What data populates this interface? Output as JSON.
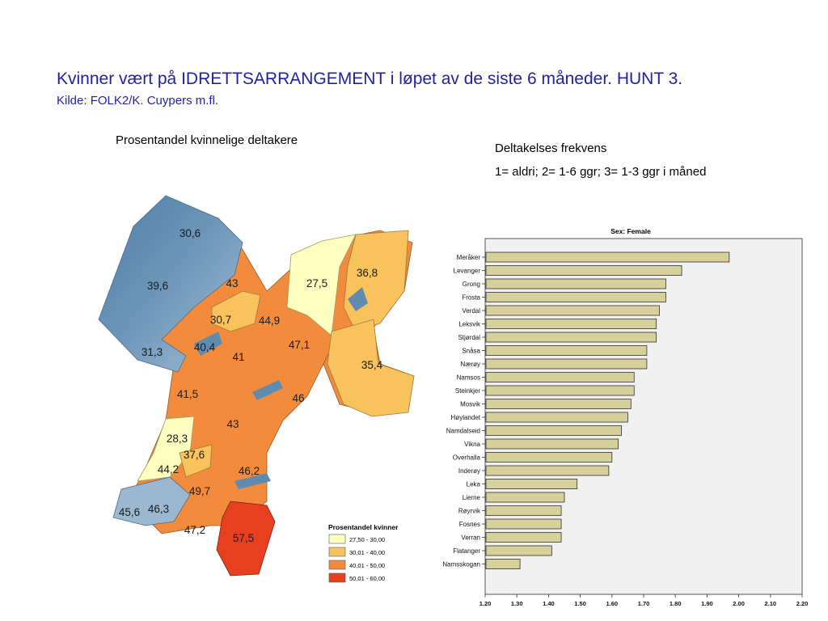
{
  "header": {
    "title": "Kvinner vært på IDRETTSARRANGEMENT i løpet av de siste 6 måneder. HUNT 3.",
    "source": "Kilde: FOLK2/K. Cuypers m.fl."
  },
  "map": {
    "heading": "Prosentandel kvinnelige deltakere",
    "region_values": [
      {
        "label": "30,6",
        "value": 30.6
      },
      {
        "label": "39,6",
        "value": 39.6
      },
      {
        "label": "43",
        "value": 43.0
      },
      {
        "label": "27,5",
        "value": 27.5
      },
      {
        "label": "36,8",
        "value": 36.8
      },
      {
        "label": "30,7",
        "value": 30.7
      },
      {
        "label": "44,9",
        "value": 44.9
      },
      {
        "label": "31,3",
        "value": 31.3
      },
      {
        "label": "40,4",
        "value": 40.4
      },
      {
        "label": "41",
        "value": 41.0
      },
      {
        "label": "47,1",
        "value": 47.1
      },
      {
        "label": "35,4",
        "value": 35.4
      },
      {
        "label": "41,5",
        "value": 41.5
      },
      {
        "label": "46",
        "value": 46.0
      },
      {
        "label": "43",
        "value": 43.0
      },
      {
        "label": "28,3",
        "value": 28.3
      },
      {
        "label": "37,6",
        "value": 37.6
      },
      {
        "label": "44,2",
        "value": 44.2
      },
      {
        "label": "46,2",
        "value": 46.2
      },
      {
        "label": "49,7",
        "value": 49.7
      },
      {
        "label": "45,6",
        "value": 45.6
      },
      {
        "label": "46,3",
        "value": 46.3
      },
      {
        "label": "47,2",
        "value": 47.2
      },
      {
        "label": "57,5",
        "value": 57.5
      }
    ],
    "legend": {
      "title": "Prosentandel kvinner",
      "items": [
        {
          "label": "27,50 - 30,00",
          "color": "#ffffc0"
        },
        {
          "label": "30,01 - 40,00",
          "color": "#f8c25c"
        },
        {
          "label": "40,01 - 50,00",
          "color": "#f28c3c"
        },
        {
          "label": "50,01 - 60,00",
          "color": "#e8401e"
        }
      ]
    }
  },
  "chart_section": {
    "heading": "Deltakelses frekvens",
    "scale_note": "1= aldri; 2= 1-6 ggr; 3= 1-3 ggr i måned"
  },
  "chart_data": {
    "type": "bar",
    "orientation": "horizontal",
    "title": "Sex: Female",
    "categories": [
      "Meråker",
      "Levanger",
      "Grong",
      "Frosta",
      "Verdal",
      "Leksvik",
      "Stjørdal",
      "Snåsa",
      "Nærøy",
      "Namsos",
      "Steinkjer",
      "Mosvik",
      "Høylandet",
      "Namdalseid",
      "Vikna",
      "Overhalla",
      "Inderøy",
      "Leka",
      "Lierne",
      "Røyrvik",
      "Fosnes",
      "Verran",
      "Flatanger",
      "Namsskogan"
    ],
    "values": [
      1.97,
      1.82,
      1.77,
      1.77,
      1.75,
      1.74,
      1.74,
      1.71,
      1.71,
      1.67,
      1.67,
      1.66,
      1.65,
      1.63,
      1.62,
      1.6,
      1.59,
      1.49,
      1.45,
      1.44,
      1.44,
      1.44,
      1.41,
      1.31
    ],
    "xlim": [
      1.2,
      2.2
    ],
    "xticks": [
      "1.20",
      "1.30",
      "1.40",
      "1.50",
      "1.60",
      "1.70",
      "1.80",
      "1.90",
      "2.00",
      "2.10",
      "2.20"
    ],
    "bar_color": "#d6d09a",
    "bar_edge": "#333333",
    "plot_bg": "#f0f0f0"
  }
}
